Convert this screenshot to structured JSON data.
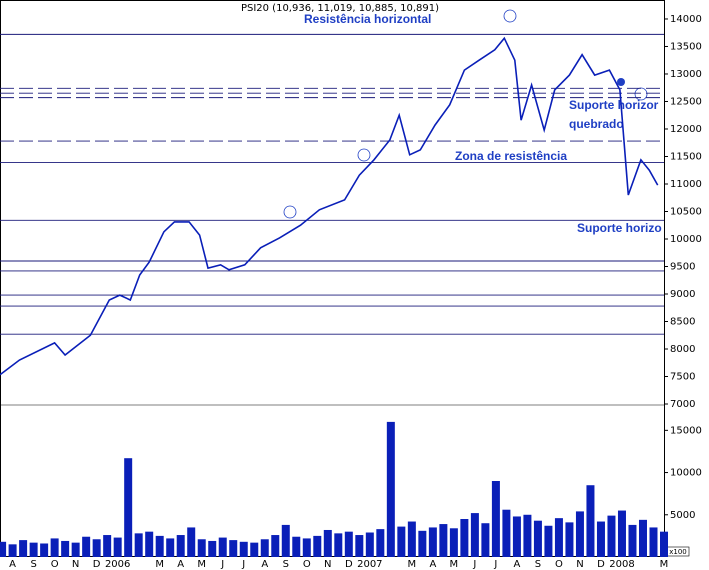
{
  "chart_data": {
    "type": "line",
    "title": "PSI20 (10,936, 11,019, 10,885, 10,891)",
    "xlim": [
      -0.6,
      31
    ],
    "xticks": [
      {
        "value": 0,
        "label": "A"
      },
      {
        "value": 1,
        "label": "S"
      },
      {
        "value": 2,
        "label": "O"
      },
      {
        "value": 3,
        "label": "N"
      },
      {
        "value": 4,
        "label": "D"
      },
      {
        "value": 5,
        "label": "2006"
      },
      {
        "value": 7,
        "label": "M"
      },
      {
        "value": 8,
        "label": "A"
      },
      {
        "value": 9,
        "label": "M"
      },
      {
        "value": 10,
        "label": "J"
      },
      {
        "value": 11,
        "label": "J"
      },
      {
        "value": 12,
        "label": "A"
      },
      {
        "value": 13,
        "label": "S"
      },
      {
        "value": 14,
        "label": "O"
      },
      {
        "value": 15,
        "label": "N"
      },
      {
        "value": 16,
        "label": "D"
      },
      {
        "value": 17,
        "label": "2007"
      },
      {
        "value": 19,
        "label": "M"
      },
      {
        "value": 20,
        "label": "A"
      },
      {
        "value": 21,
        "label": "M"
      },
      {
        "value": 22,
        "label": "J"
      },
      {
        "value": 23,
        "label": "J"
      },
      {
        "value": 24,
        "label": "A"
      },
      {
        "value": 25,
        "label": "S"
      },
      {
        "value": 26,
        "label": "O"
      },
      {
        "value": 27,
        "label": "N"
      },
      {
        "value": 28,
        "label": "D"
      },
      {
        "value": 29,
        "label": "2008"
      },
      {
        "value": 31,
        "label": "M"
      }
    ],
    "ylim": [
      7000,
      14345
    ],
    "yticks": [
      7000,
      7500,
      8000,
      8500,
      9000,
      9500,
      10000,
      10500,
      11000,
      11500,
      12000,
      12500,
      13000,
      13500,
      14000
    ],
    "series": [
      {
        "color": "#0a1fb8",
        "x": [
          -0.6,
          0.33,
          2,
          2.5,
          3.7,
          4.6,
          5.1,
          5.6,
          6.05,
          6.5,
          7.2,
          7.7,
          8.4,
          8.9,
          9.3,
          9.9,
          10.3,
          11.05,
          11.8,
          12.7,
          13.7,
          14.6,
          15.8,
          16.5,
          17.2,
          17.95,
          18.4,
          18.9,
          19.4,
          20.1,
          20.8,
          21.5,
          22.2,
          22.95,
          23.4,
          23.9,
          24.2,
          24.7,
          25.3,
          25.8,
          26.5,
          27.1,
          27.7,
          28.4,
          28.9,
          29.3,
          29.9,
          30.3,
          30.7
        ],
        "values": [
          7530,
          7800,
          8110,
          7890,
          8250,
          8890,
          8980,
          8890,
          9345,
          9580,
          10130,
          10310,
          10310,
          10070,
          9470,
          9530,
          9440,
          9530,
          9840,
          10020,
          10250,
          10530,
          10710,
          11160,
          11440,
          11800,
          12250,
          11530,
          11620,
          12070,
          12440,
          13070,
          13250,
          13440,
          13650,
          13250,
          12160,
          12800,
          11980,
          12710,
          12980,
          13350,
          12980,
          13070,
          12710,
          10800,
          11440,
          11250,
          10980
        ]
      }
    ],
    "levels": [
      {
        "value": 13720,
        "style": "solid"
      },
      {
        "value": 12740,
        "style": "dashed"
      },
      {
        "value": 12650,
        "style": "dashed"
      },
      {
        "value": 12570,
        "style": "dashed"
      },
      {
        "value": 11780,
        "style": "dashed"
      },
      {
        "value": 11390,
        "style": "solid"
      },
      {
        "value": 10340,
        "style": "solid"
      },
      {
        "value": 9600,
        "style": "solid"
      },
      {
        "value": 9420,
        "style": "solid"
      },
      {
        "value": 8980,
        "style": "solid"
      },
      {
        "value": 8780,
        "style": "solid"
      },
      {
        "value": 8270,
        "style": "solid"
      }
    ],
    "annotations": [
      "Resistência horizontal",
      "Zona de resistência",
      "Suporte horizor",
      "quebrado",
      "Suporte horizo"
    ],
    "volume": {
      "unit_label": "x100",
      "color": "#0a1fb8",
      "ylim": [
        0,
        18000
      ],
      "yticks": [
        5000,
        10000,
        15000
      ],
      "x": [
        -0.5,
        0,
        0.5,
        1,
        1.5,
        2,
        2.5,
        3,
        3.5,
        4,
        4.5,
        5,
        5.5,
        6,
        6.5,
        7,
        7.5,
        8,
        8.5,
        9,
        9.5,
        10,
        10.5,
        11,
        11.5,
        12,
        12.5,
        13,
        13.5,
        14,
        14.5,
        15,
        15.5,
        16,
        16.5,
        17,
        17.5,
        18,
        18.5,
        19,
        19.5,
        20,
        20.5,
        21,
        21.5,
        22,
        22.5,
        23,
        23.5,
        24,
        24.5,
        25,
        25.5,
        26,
        26.5,
        27,
        27.5,
        28,
        28.5,
        29,
        29.5,
        30,
        30.5,
        31
      ],
      "values": [
        1800,
        1500,
        2000,
        1700,
        1600,
        2200,
        1900,
        1700,
        2400,
        2100,
        2600,
        2300,
        11700,
        2800,
        3000,
        2500,
        2200,
        2600,
        3500,
        2100,
        1900,
        2300,
        2000,
        1800,
        1700,
        2100,
        2600,
        3800,
        2400,
        2200,
        2500,
        3200,
        2800,
        3000,
        2600,
        2900,
        3300,
        16000,
        3600,
        4200,
        3100,
        3500,
        3900,
        3400,
        4500,
        5200,
        4000,
        9000,
        5600,
        4800,
        5000,
        4300,
        3700,
        4600,
        4100,
        5400,
        8500,
        4200,
        4900,
        5500,
        3800,
        4400,
        3500,
        3000
      ]
    }
  }
}
